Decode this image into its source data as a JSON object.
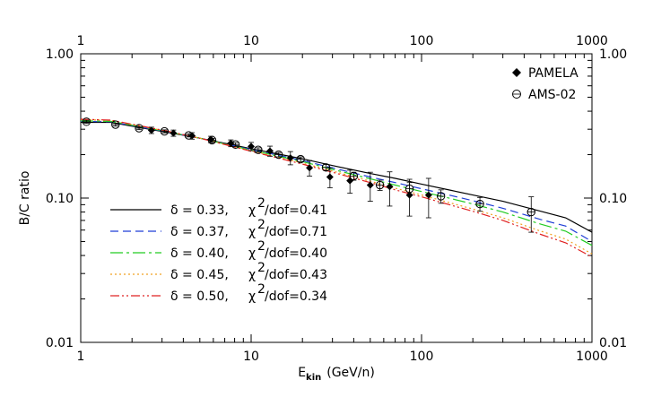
{
  "chart_data": {
    "type": "line",
    "title": "",
    "xlabel": {
      "main": "E",
      "sub": "kin",
      "unit": "(GeV/n)"
    },
    "ylabel": "B/C ratio",
    "xscale": "log",
    "yscale": "log",
    "xlim": [
      1,
      1000
    ],
    "ylim": [
      0.01,
      1.0
    ],
    "x_ticks": [
      1,
      10,
      100,
      1000
    ],
    "x_tick_labels": [
      "1",
      "10",
      "100",
      "1000"
    ],
    "y_ticks": [
      0.01,
      0.1,
      1.0
    ],
    "y_tick_labels": [
      "0.01",
      "0.10",
      "1.00"
    ],
    "legend_placement": "top-right",
    "model_legend_placement": "lower-left",
    "series": [
      {
        "name": "δ = 0.33,   χ²/dof=0.41",
        "delta_text": "δ = 0.33,",
        "chi_text": "χ",
        "sup_text": "2",
        "dof_text": "/dof=0.41",
        "color": "#000000",
        "dash": "solid",
        "x": [
          1,
          1.5,
          2,
          3,
          5,
          7,
          10,
          15,
          20,
          30,
          50,
          70,
          100,
          150,
          200,
          300,
          500,
          700,
          1000
        ],
        "y": [
          0.335,
          0.335,
          0.315,
          0.29,
          0.26,
          0.24,
          0.22,
          0.2,
          0.187,
          0.168,
          0.148,
          0.137,
          0.125,
          0.113,
          0.105,
          0.095,
          0.081,
          0.073,
          0.058
        ]
      },
      {
        "name": "δ = 0.37,   χ²/dof=0.71",
        "delta_text": "δ = 0.37,",
        "chi_text": "χ",
        "sup_text": "2",
        "dof_text": "/dof=0.71",
        "color": "#1f3fd6",
        "dash": "9,5",
        "x": [
          1,
          1.5,
          2,
          3,
          5,
          7,
          10,
          15,
          20,
          30,
          50,
          70,
          100,
          150,
          200,
          300,
          500,
          700,
          1000
        ],
        "y": [
          0.34,
          0.338,
          0.318,
          0.292,
          0.26,
          0.238,
          0.217,
          0.196,
          0.182,
          0.162,
          0.14,
          0.128,
          0.116,
          0.104,
          0.096,
          0.085,
          0.071,
          0.064,
          0.05
        ]
      },
      {
        "name": "δ = 0.40,   χ²/dof=0.40",
        "delta_text": "δ = 0.40,",
        "chi_text": "χ",
        "sup_text": "2",
        "dof_text": "/dof=0.40",
        "color": "#22cc22",
        "dash": "14,4,3,4",
        "x": [
          1,
          1.5,
          2,
          3,
          5,
          7,
          10,
          15,
          20,
          30,
          50,
          70,
          100,
          150,
          200,
          300,
          500,
          700,
          1000
        ],
        "y": [
          0.343,
          0.34,
          0.32,
          0.293,
          0.26,
          0.237,
          0.215,
          0.193,
          0.179,
          0.158,
          0.136,
          0.123,
          0.111,
          0.099,
          0.091,
          0.08,
          0.066,
          0.059,
          0.047
        ]
      },
      {
        "name": "δ = 0.45,   χ²/dof=0.43",
        "delta_text": "δ = 0.45,",
        "chi_text": "χ",
        "sup_text": "2",
        "dof_text": "/dof=0.43",
        "color": "#f0a020",
        "dash": "2,3",
        "x": [
          1,
          1.5,
          2,
          3,
          5,
          7,
          10,
          15,
          20,
          30,
          50,
          70,
          100,
          150,
          200,
          300,
          500,
          700,
          1000
        ],
        "y": [
          0.35,
          0.345,
          0.323,
          0.295,
          0.26,
          0.236,
          0.213,
          0.19,
          0.175,
          0.154,
          0.131,
          0.117,
          0.105,
          0.092,
          0.084,
          0.073,
          0.059,
          0.052,
          0.041
        ]
      },
      {
        "name": "δ = 0.50,   χ²/dof=0.34",
        "delta_text": "δ = 0.50,",
        "chi_text": "χ",
        "sup_text": "2",
        "dof_text": "/dof=0.34",
        "color": "#e02020",
        "dash": "10,3,2,3,2,3",
        "x": [
          1,
          1.5,
          2,
          3,
          5,
          7,
          10,
          15,
          20,
          30,
          50,
          70,
          100,
          150,
          200,
          300,
          500,
          700,
          1000
        ],
        "y": [
          0.352,
          0.347,
          0.325,
          0.296,
          0.26,
          0.235,
          0.211,
          0.187,
          0.172,
          0.151,
          0.128,
          0.114,
          0.102,
          0.089,
          0.081,
          0.07,
          0.056,
          0.049,
          0.039
        ]
      }
    ],
    "datasets": [
      {
        "name": "PAMELA",
        "marker": "diamond-filled",
        "color": "#000000",
        "points": [
          {
            "x": 2.6,
            "y": 0.295,
            "err": 0.015
          },
          {
            "x": 3.5,
            "y": 0.282,
            "err": 0.014
          },
          {
            "x": 4.5,
            "y": 0.27,
            "err": 0.014
          },
          {
            "x": 5.8,
            "y": 0.255,
            "err": 0.013
          },
          {
            "x": 7.6,
            "y": 0.24,
            "err": 0.013
          },
          {
            "x": 10,
            "y": 0.228,
            "err": 0.015
          },
          {
            "x": 12.9,
            "y": 0.212,
            "err": 0.017
          },
          {
            "x": 17,
            "y": 0.19,
            "err": 0.02
          },
          {
            "x": 22,
            "y": 0.162,
            "err": 0.02
          },
          {
            "x": 29,
            "y": 0.14,
            "err": 0.022
          },
          {
            "x": 38,
            "y": 0.132,
            "err": 0.024
          },
          {
            "x": 50,
            "y": 0.123,
            "err": 0.028
          },
          {
            "x": 65,
            "y": 0.12,
            "err": 0.032
          },
          {
            "x": 85,
            "y": 0.105,
            "err": 0.03
          },
          {
            "x": 110,
            "y": 0.105,
            "err": 0.032
          }
        ]
      },
      {
        "name": "AMS-02",
        "marker": "circle-open",
        "color": "#000000",
        "points": [
          {
            "x": 1.08,
            "y": 0.338,
            "err": 0.008
          },
          {
            "x": 1.6,
            "y": 0.323,
            "err": 0.008
          },
          {
            "x": 2.2,
            "y": 0.305,
            "err": 0.007
          },
          {
            "x": 3.1,
            "y": 0.29,
            "err": 0.007
          },
          {
            "x": 4.3,
            "y": 0.272,
            "err": 0.007
          },
          {
            "x": 5.9,
            "y": 0.252,
            "err": 0.007
          },
          {
            "x": 8.1,
            "y": 0.235,
            "err": 0.007
          },
          {
            "x": 11,
            "y": 0.216,
            "err": 0.007
          },
          {
            "x": 14.5,
            "y": 0.2,
            "err": 0.007
          },
          {
            "x": 19.5,
            "y": 0.186,
            "err": 0.007
          },
          {
            "x": 27.5,
            "y": 0.163,
            "err": 0.008
          },
          {
            "x": 40,
            "y": 0.142,
            "err": 0.009
          },
          {
            "x": 57,
            "y": 0.123,
            "err": 0.01
          },
          {
            "x": 85,
            "y": 0.116,
            "err": 0.012
          },
          {
            "x": 130,
            "y": 0.103,
            "err": 0.011
          },
          {
            "x": 220,
            "y": 0.091,
            "err": 0.01
          },
          {
            "x": 440,
            "y": 0.08,
            "err": 0.022
          }
        ]
      }
    ]
  }
}
